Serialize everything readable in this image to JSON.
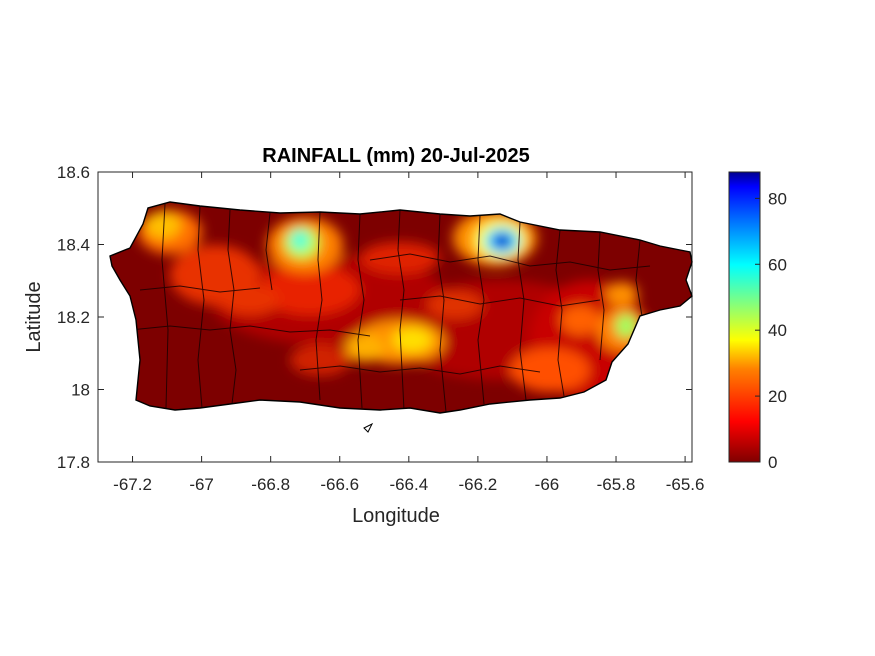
{
  "chart_data": {
    "type": "heatmap",
    "title": "RAINFALL (mm) 20-Jul-2025",
    "xlabel": "Longitude",
    "ylabel": "Latitude",
    "xlim": [
      -67.3,
      -65.58
    ],
    "ylim": [
      17.8,
      18.6
    ],
    "xticks": [
      -67.2,
      -67,
      -66.8,
      -66.6,
      -66.4,
      -66.2,
      -66,
      -65.8,
      -65.6
    ],
    "xtick_labels": [
      "-67.2",
      "-67",
      "-66.8",
      "-66.6",
      "-66.4",
      "-66.2",
      "-66",
      "-65.8",
      "-65.6"
    ],
    "yticks": [
      17.8,
      18,
      18.2,
      18.4,
      18.6
    ],
    "ytick_labels": [
      "17.8",
      "18",
      "18.2",
      "18.4",
      "18.6"
    ],
    "grid": false,
    "colormap": "jet (reversed)",
    "colorbar": {
      "range": [
        0,
        88
      ],
      "ticks": [
        0,
        20,
        40,
        60,
        80
      ],
      "tick_labels": [
        "0",
        "20",
        "40",
        "60",
        "80"
      ],
      "colors": [
        "#800000",
        "#ff0000",
        "#ffff00",
        "#00ffff",
        "#0000ff",
        "#00008f"
      ]
    },
    "rainfall_peaks": [
      {
        "lon": -66.13,
        "lat": 18.4,
        "value": 85
      },
      {
        "lon": -66.72,
        "lat": 18.41,
        "value": 45
      },
      {
        "lon": -65.8,
        "lat": 18.17,
        "value": 42
      },
      {
        "lon": -67.1,
        "lat": 18.45,
        "value": 28
      },
      {
        "lon": -66.38,
        "lat": 18.14,
        "value": 30
      },
      {
        "lon": -66.5,
        "lat": 18.12,
        "value": 24
      },
      {
        "lon": -66.77,
        "lat": 18.37,
        "value": 22
      },
      {
        "lon": -65.82,
        "lat": 18.26,
        "value": 20
      },
      {
        "lon": -66.0,
        "lat": 18.06,
        "value": 15
      },
      {
        "lon": -66.2,
        "lat": 18.41,
        "value": 25
      },
      {
        "lon": -66.61,
        "lat": 18.26,
        "value": 14
      },
      {
        "lon": -67.03,
        "lat": 18.32,
        "value": 12
      }
    ]
  }
}
